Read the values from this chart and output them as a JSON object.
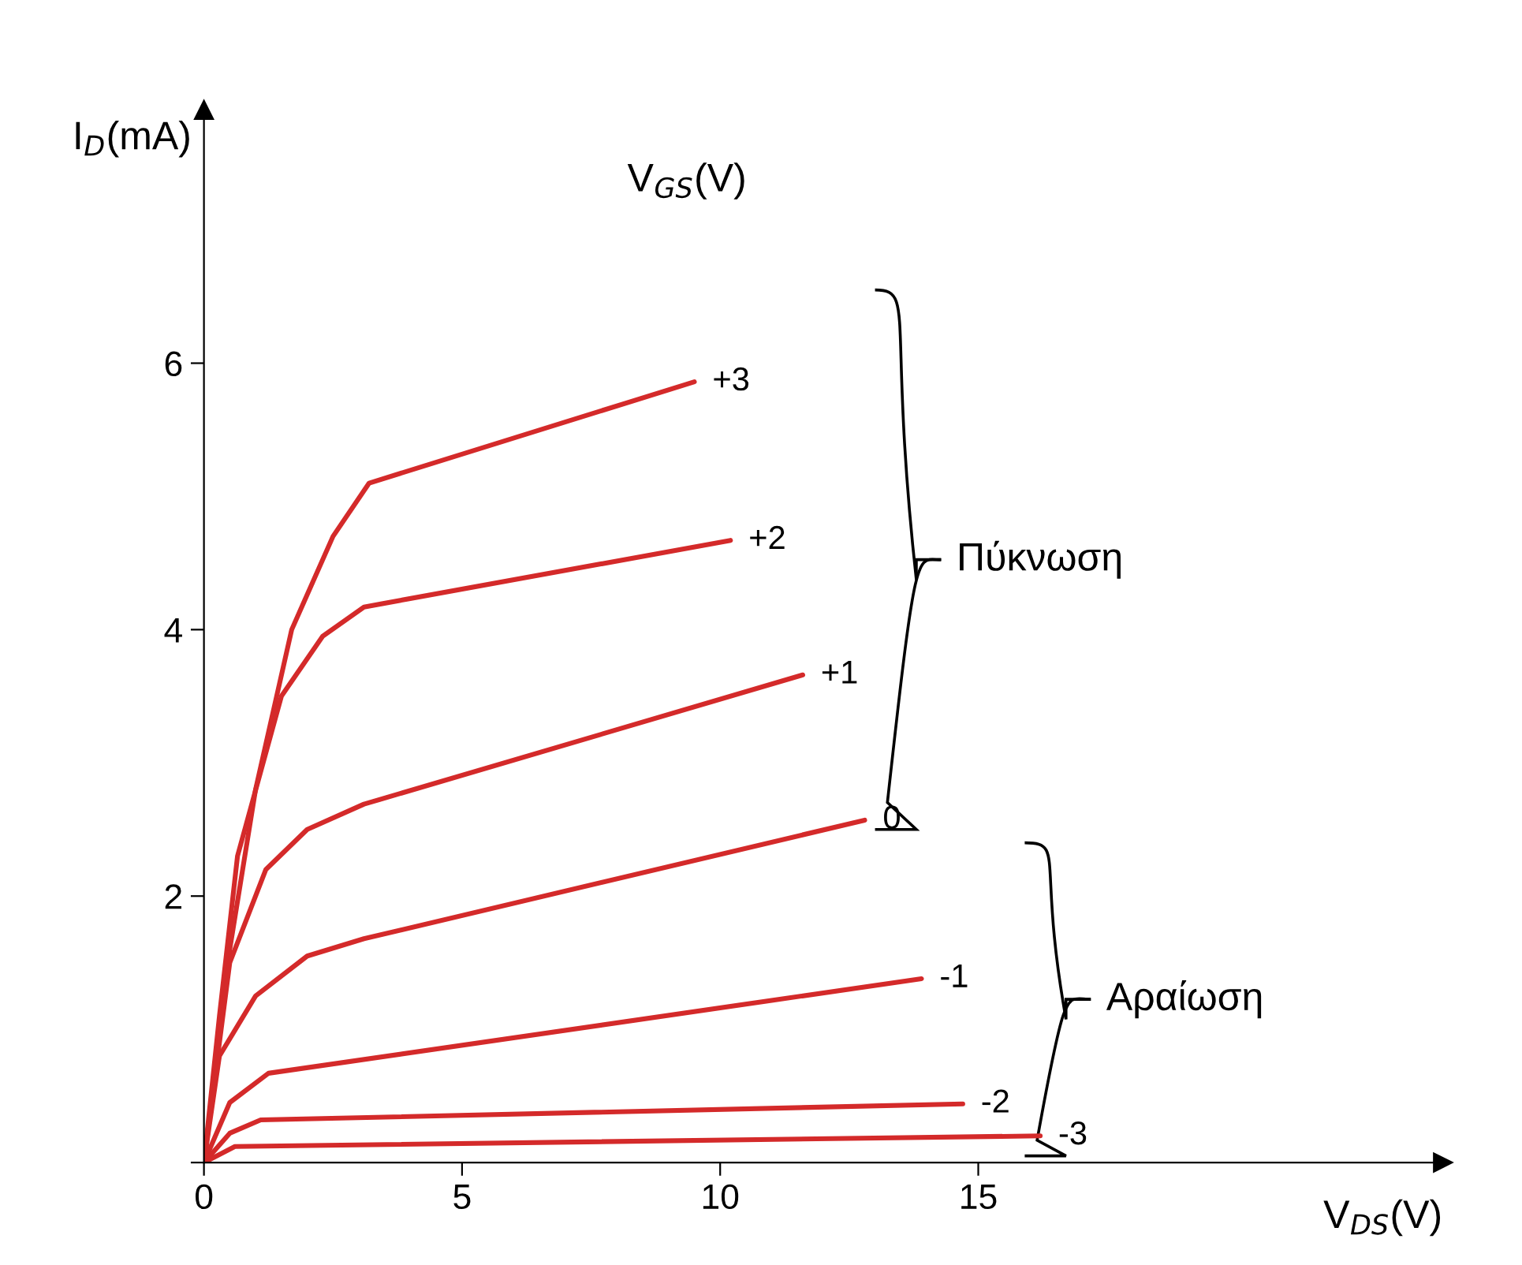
{
  "chart_data": {
    "type": "line",
    "xlabel": "V$_{DS}$(V)",
    "ylabel": "I$_{D}$(mA)",
    "legend_title": "V$_{GS}$(V)",
    "annotations": [
      "Πύκνωση",
      "Αραίωση"
    ],
    "xlim": [
      0,
      24
    ],
    "ylim": [
      0,
      7.9
    ],
    "xticks": [
      0,
      5,
      10,
      15
    ],
    "yticks": [
      {
        "value": 0,
        "label": null
      },
      2,
      4,
      6
    ],
    "grid": false,
    "legend": false,
    "marker": "none",
    "line_style": "solid",
    "series": [
      {
        "name": "+3",
        "color": "#d42a2a",
        "x": [
          0,
          0.5,
          1,
          1.7,
          2.5,
          3.2,
          9.5
        ],
        "values": [
          0,
          1.6,
          2.8,
          4.0,
          4.7,
          5.1,
          5.86
        ]
      },
      {
        "name": "+2",
        "color": "#d42a2a",
        "x": [
          0,
          0.3,
          0.65,
          1.5,
          2.3,
          3.1,
          10.2
        ],
        "values": [
          0,
          1.1,
          2.3,
          3.5,
          3.95,
          4.17,
          4.67
        ]
      },
      {
        "name": "+1",
        "color": "#d42a2a",
        "x": [
          0,
          0.5,
          1.2,
          2,
          3.1,
          11.6
        ],
        "values": [
          0,
          1.5,
          2.2,
          2.5,
          2.69,
          3.66
        ]
      },
      {
        "name": "0",
        "color": "#d42a2a",
        "x": [
          0,
          0.3,
          1,
          2,
          3.1,
          12.8
        ],
        "values": [
          0,
          0.8,
          1.25,
          1.55,
          1.68,
          2.57
        ]
      },
      {
        "name": "-1",
        "color": "#d42a2a",
        "x": [
          0,
          0.5,
          1.25,
          13.9
        ],
        "values": [
          0,
          0.45,
          0.67,
          1.38
        ]
      },
      {
        "name": "-2",
        "color": "#d42a2a",
        "x": [
          0,
          0.5,
          1.1,
          14.7
        ],
        "values": [
          0,
          0.22,
          0.32,
          0.44
        ]
      },
      {
        "name": "-3",
        "color": "#d42a2a",
        "x": [
          0,
          0.6,
          16.2
        ],
        "values": [
          0,
          0.12,
          0.2
        ]
      }
    ]
  }
}
